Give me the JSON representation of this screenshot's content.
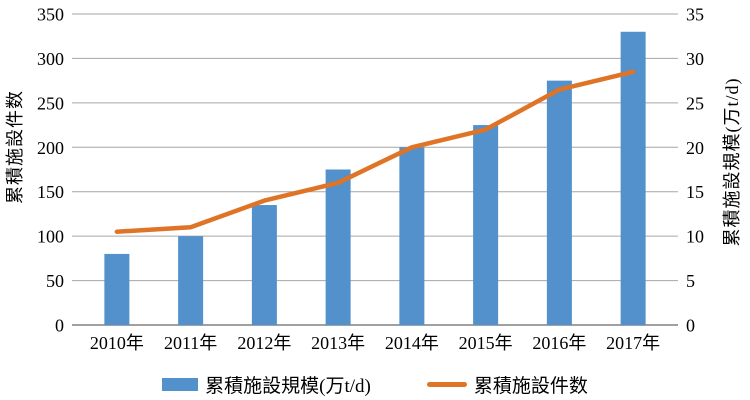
{
  "chart_data": {
    "type": "bar+line combo",
    "categories": [
      "2010年",
      "2011年",
      "2012年",
      "2013年",
      "2014年",
      "2015年",
      "2016年",
      "2017年"
    ],
    "series": [
      {
        "name": "累積施設規模(万t/d)",
        "type": "bar",
        "axis": "right",
        "values": [
          8,
          10,
          13.5,
          17.5,
          20,
          22.5,
          27.5,
          33
        ],
        "color": "#5291CC"
      },
      {
        "name": "累積施設件数",
        "type": "line",
        "axis": "left",
        "values": [
          105,
          110,
          140,
          160,
          200,
          220,
          265,
          285
        ],
        "color": "#DF7426"
      }
    ],
    "left_axis": {
      "label": "累積施設件数",
      "min": 0,
      "max": 350,
      "step": 50,
      "ticks": [
        0,
        50,
        100,
        150,
        200,
        250,
        300,
        350
      ]
    },
    "right_axis": {
      "label": "累積施設規模(万t/d)",
      "min": 0,
      "max": 35,
      "step": 5,
      "ticks": [
        0,
        5,
        10,
        15,
        20,
        25,
        30,
        35
      ]
    },
    "grid": true,
    "legend_position": "bottom",
    "colors": {
      "grid": "#A6A6A6",
      "axis": "#808080",
      "text": "#000000",
      "background": "#FFFFFF"
    }
  }
}
